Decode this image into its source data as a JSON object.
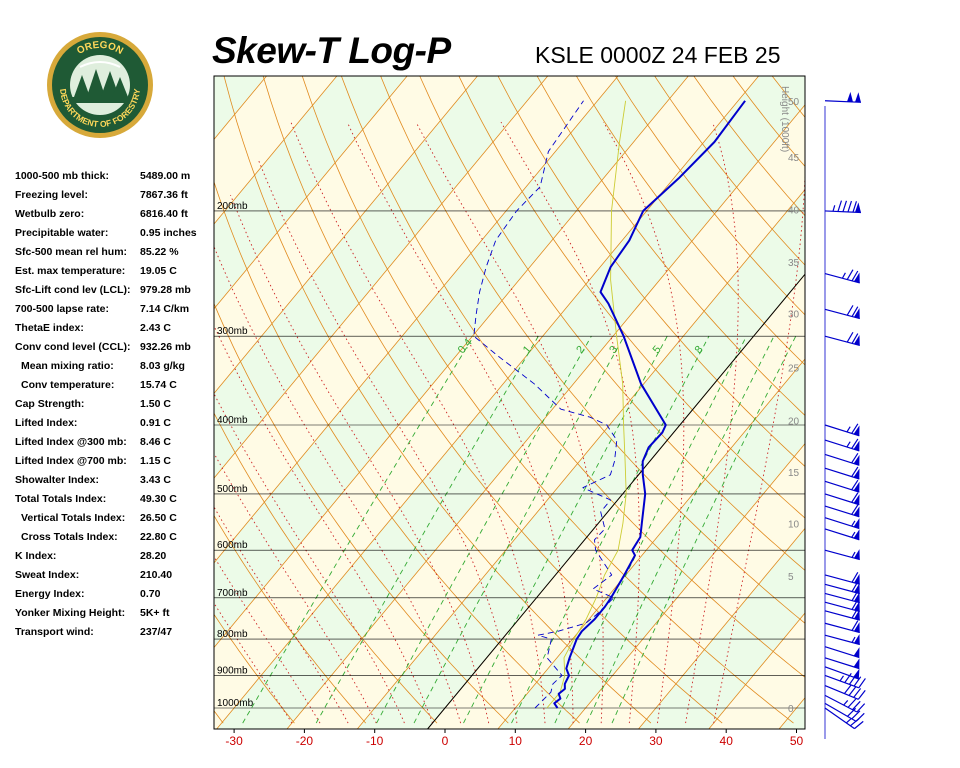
{
  "header": {
    "title": "Skew-T Log-P",
    "station_time": "KSLE 0000Z 24 FEB 25"
  },
  "logo": {
    "top_text": "OREGON",
    "ring_text": "DEPARTMENT OF FORESTRY"
  },
  "indices": [
    {
      "label": "1000-500 mb thick:",
      "value": "5489.00 m",
      "indent": false
    },
    {
      "label": "Freezing level:",
      "value": "7867.36 ft",
      "indent": false
    },
    {
      "label": "Wetbulb zero:",
      "value": "6816.40 ft",
      "indent": false
    },
    {
      "label": "Precipitable water:",
      "value": "0.95 inches",
      "indent": false
    },
    {
      "label": "Sfc-500 mean rel hum:",
      "value": "85.22 %",
      "indent": false
    },
    {
      "label": "Est. max temperature:",
      "value": "19.05 C",
      "indent": false
    },
    {
      "label": "Sfc-Lift cond lev (LCL):",
      "value": "979.28 mb",
      "indent": false
    },
    {
      "label": "700-500 lapse rate:",
      "value": "7.14 C/km",
      "indent": false
    },
    {
      "label": "ThetaE index:",
      "value": "2.43 C",
      "indent": false
    },
    {
      "label": "Conv cond level (CCL):",
      "value": "932.26 mb",
      "indent": false
    },
    {
      "label": "Mean mixing ratio:",
      "value": "8.03 g/kg",
      "indent": true
    },
    {
      "label": "Conv temperature:",
      "value": "15.74 C",
      "indent": true
    },
    {
      "label": "Cap Strength:",
      "value": "1.50 C",
      "indent": false
    },
    {
      "label": "Lifted Index:",
      "value": "0.91 C",
      "indent": false
    },
    {
      "label": "Lifted Index @300 mb:",
      "value": "8.46 C",
      "indent": false
    },
    {
      "label": "Lifted Index @700 mb:",
      "value": "1.15 C",
      "indent": false
    },
    {
      "label": "Showalter Index:",
      "value": "3.43 C",
      "indent": false
    },
    {
      "label": "Total Totals Index:",
      "value": "49.30 C",
      "indent": false
    },
    {
      "label": "Vertical Totals Index:",
      "value": "26.50 C",
      "indent": true
    },
    {
      "label": "Cross Totals Index:",
      "value": "22.80 C",
      "indent": true
    },
    {
      "label": "K Index:",
      "value": "28.20",
      "indent": false
    },
    {
      "label": "Sweat Index:",
      "value": "210.40",
      "indent": false
    },
    {
      "label": "Energy Index:",
      "value": "0.70",
      "indent": false
    },
    {
      "label": "Yonker Mixing Height:",
      "value": "5K+ ft",
      "indent": false
    },
    {
      "label": "Transport wind:",
      "value": "237/47",
      "indent": false
    }
  ],
  "chart_data": {
    "type": "line",
    "title": "Skew-T Log-P",
    "subtitle": "KSLE 0000Z 24 FEB 25",
    "xlabel": "",
    "ylabel": "",
    "x_ticks": [
      -30,
      -20,
      -10,
      0,
      10,
      20,
      30,
      40,
      50
    ],
    "xlim": [
      -33,
      50
    ],
    "pressure_levels": [
      {
        "p": 200,
        "label": "200mb"
      },
      {
        "p": 300,
        "label": "300mb"
      },
      {
        "p": 400,
        "label": "400mb"
      },
      {
        "p": 500,
        "label": "500mb"
      },
      {
        "p": 600,
        "label": "600mb"
      },
      {
        "p": 700,
        "label": "700mb"
      },
      {
        "p": 800,
        "label": "800mb"
      },
      {
        "p": 900,
        "label": "900mb"
      },
      {
        "p": 1000,
        "label": "1000mb"
      }
    ],
    "height_axis_label": "Height (1000ft)",
    "height_ticks": [
      {
        "kft": 50,
        "p": 140
      },
      {
        "kft": 45,
        "p": 168
      },
      {
        "kft": 40,
        "p": 199
      },
      {
        "kft": 35,
        "p": 236
      },
      {
        "kft": 30,
        "p": 279
      },
      {
        "kft": 25,
        "p": 332
      },
      {
        "kft": 20,
        "p": 394
      },
      {
        "kft": 15,
        "p": 466
      },
      {
        "kft": 10,
        "p": 550
      },
      {
        "kft": 5,
        "p": 652
      },
      {
        "kft": 0,
        "p": 1000
      }
    ],
    "mixing_ratio_labels": [
      "0.4",
      "1",
      "2",
      "3",
      "5",
      "8"
    ],
    "series": [
      {
        "role": "temperature",
        "color": "#0000cc",
        "style": "solid",
        "points": [
          [
            1000,
            16.0
          ],
          [
            985,
            15.0
          ],
          [
            970,
            15.3
          ],
          [
            955,
            14.5
          ],
          [
            940,
            14.8
          ],
          [
            925,
            14.2
          ],
          [
            900,
            13.8
          ],
          [
            880,
            12.6
          ],
          [
            850,
            11.8
          ],
          [
            800,
            10.6
          ],
          [
            780,
            10.4
          ],
          [
            750,
            10.8
          ],
          [
            720,
            10.8
          ],
          [
            700,
            10.6
          ],
          [
            650,
            9.8
          ],
          [
            610,
            9.0
          ],
          [
            600,
            8.0
          ],
          [
            575,
            7.6
          ],
          [
            550,
            6.2
          ],
          [
            500,
            3.2
          ],
          [
            470,
            0.6
          ],
          [
            450,
            -1.0
          ],
          [
            430,
            -1.8
          ],
          [
            410,
            -1.6
          ],
          [
            400,
            -2.0
          ],
          [
            350,
            -10.4
          ],
          [
            300,
            -18.5
          ],
          [
            270,
            -24.5
          ],
          [
            260,
            -27.0
          ],
          [
            240,
            -28.5
          ],
          [
            220,
            -29.0
          ],
          [
            200,
            -30.5
          ],
          [
            180,
            -29.3
          ],
          [
            160,
            -28.5
          ],
          [
            140,
            -29.0
          ]
        ]
      },
      {
        "role": "dewpoint",
        "color": "#0000cc",
        "style": "dashed",
        "points": [
          [
            1000,
            12.8
          ],
          [
            950,
            13.2
          ],
          [
            925,
            12.5
          ],
          [
            900,
            12.8
          ],
          [
            850,
            8.6
          ],
          [
            800,
            7.0
          ],
          [
            790,
            4.6
          ],
          [
            780,
            7.0
          ],
          [
            760,
            10.0
          ],
          [
            740,
            10.5
          ],
          [
            700,
            11.0
          ],
          [
            680,
            7.0
          ],
          [
            650,
            8.0
          ],
          [
            600,
            2.8
          ],
          [
            580,
            1.4
          ],
          [
            560,
            1.6
          ],
          [
            530,
            -1.0
          ],
          [
            510,
            -1.0
          ],
          [
            490,
            -6.4
          ],
          [
            470,
            -4.0
          ],
          [
            450,
            -5.0
          ],
          [
            420,
            -7.2
          ],
          [
            400,
            -10.4
          ],
          [
            390,
            -13.7
          ],
          [
            380,
            -18.8
          ],
          [
            350,
            -25.6
          ],
          [
            320,
            -34.0
          ],
          [
            300,
            -39.8
          ],
          [
            280,
            -42.0
          ],
          [
            260,
            -44.2
          ],
          [
            240,
            -46.2
          ],
          [
            220,
            -48.0
          ],
          [
            200,
            -48.5
          ],
          [
            185,
            -48.0
          ],
          [
            165,
            -51.0
          ],
          [
            140,
            -52.0
          ]
        ]
      },
      {
        "role": "parcel",
        "color": "#cccc33",
        "style": "solid",
        "points": [
          [
            1000,
            14.5
          ],
          [
            950,
            14.5
          ],
          [
            900,
            13.2
          ],
          [
            850,
            11.0
          ],
          [
            800,
            10.2
          ],
          [
            750,
            9.6
          ],
          [
            700,
            8.5
          ],
          [
            650,
            7.0
          ],
          [
            600,
            6.0
          ],
          [
            550,
            3.5
          ],
          [
            500,
            0.5
          ],
          [
            450,
            -3.5
          ],
          [
            400,
            -8.0
          ],
          [
            350,
            -13.0
          ],
          [
            300,
            -19.5
          ],
          [
            250,
            -27.0
          ],
          [
            200,
            -35.0
          ],
          [
            160,
            -42.0
          ],
          [
            140,
            -46.0
          ]
        ]
      }
    ],
    "wind_barbs": [
      {
        "p": 140,
        "dir": 265,
        "kt": 100
      },
      {
        "p": 200,
        "dir": 265,
        "kt": 95
      },
      {
        "p": 245,
        "dir": 240,
        "kt": 75
      },
      {
        "p": 275,
        "dir": 240,
        "kt": 70
      },
      {
        "p": 300,
        "dir": 240,
        "kt": 70
      },
      {
        "p": 400,
        "dir": 235,
        "kt": 65
      },
      {
        "p": 420,
        "dir": 235,
        "kt": 65
      },
      {
        "p": 440,
        "dir": 235,
        "kt": 60
      },
      {
        "p": 460,
        "dir": 235,
        "kt": 60
      },
      {
        "p": 480,
        "dir": 235,
        "kt": 60
      },
      {
        "p": 500,
        "dir": 235,
        "kt": 60
      },
      {
        "p": 520,
        "dir": 235,
        "kt": 60
      },
      {
        "p": 540,
        "dir": 235,
        "kt": 55
      },
      {
        "p": 560,
        "dir": 235,
        "kt": 55
      },
      {
        "p": 600,
        "dir": 240,
        "kt": 55
      },
      {
        "p": 650,
        "dir": 240,
        "kt": 60
      },
      {
        "p": 670,
        "dir": 240,
        "kt": 60
      },
      {
        "p": 690,
        "dir": 240,
        "kt": 60
      },
      {
        "p": 710,
        "dir": 240,
        "kt": 60
      },
      {
        "p": 730,
        "dir": 240,
        "kt": 60
      },
      {
        "p": 760,
        "dir": 240,
        "kt": 60
      },
      {
        "p": 790,
        "dir": 240,
        "kt": 55
      },
      {
        "p": 820,
        "dir": 235,
        "kt": 50
      },
      {
        "p": 850,
        "dir": 235,
        "kt": 50
      },
      {
        "p": 875,
        "dir": 230,
        "kt": 50
      },
      {
        "p": 900,
        "dir": 230,
        "kt": 45
      },
      {
        "p": 930,
        "dir": 225,
        "kt": 40
      },
      {
        "p": 960,
        "dir": 215,
        "kt": 35
      },
      {
        "p": 985,
        "dir": 210,
        "kt": 30
      },
      {
        "p": 1000,
        "dir": 200,
        "kt": 25
      }
    ],
    "colors": {
      "tick_labels": "#cc0000",
      "dry_adiabat": "#e08a1e",
      "isotherm": "#e08a1e",
      "moist_adiabat": "#cc2222",
      "mixing_ratio": "#33aa33",
      "band_a": "#fffbe5",
      "band_b": "#ecfbe8",
      "isobar": "#000000",
      "zero_isotherm": "#000000"
    },
    "grid": true,
    "legend": "none"
  }
}
